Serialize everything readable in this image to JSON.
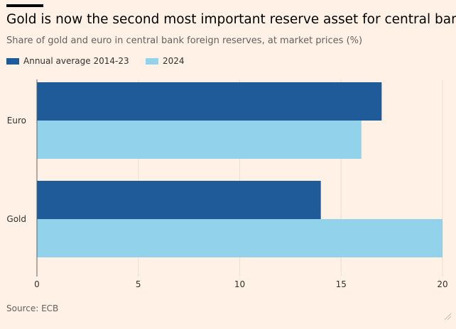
{
  "header": {
    "title": "Gold is now the second most important reserve asset for central banks",
    "subtitle": "Share of gold and euro in central bank foreign reserves, at market prices (%)"
  },
  "footer": {
    "source": "Source: ECB"
  },
  "colors": {
    "background": "#fff1e5",
    "series_dark": "#1f5a99",
    "series_light": "#92d2ea"
  },
  "chart_data": {
    "type": "bar",
    "orientation": "horizontal",
    "title": "Gold is now the second most important reserve asset for central banks",
    "subtitle": "Share of gold and euro in central bank foreign reserves, at market prices (%)",
    "categories": [
      "Euro",
      "Gold"
    ],
    "series": [
      {
        "name": "Annual average 2014-23",
        "values": [
          17,
          14
        ],
        "color": "#1f5a99"
      },
      {
        "name": "2024",
        "values": [
          16,
          20
        ],
        "color": "#92d2ea"
      }
    ],
    "xlim": [
      0,
      20
    ],
    "xticks": [
      0,
      5,
      10,
      15,
      20
    ],
    "xlabel": "",
    "ylabel": "",
    "grid": true,
    "legend_position": "top-left"
  }
}
